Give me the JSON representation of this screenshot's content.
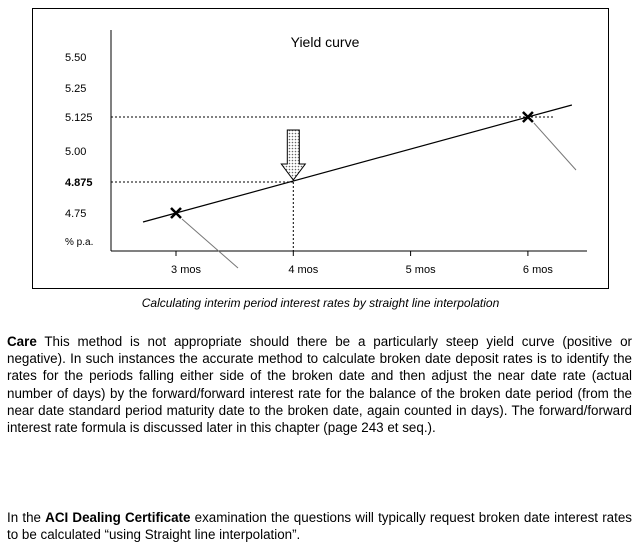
{
  "chart_data": {
    "type": "line",
    "title": "Yield curve",
    "x_categories": [
      "3 mos",
      "4 mos",
      "5 mos",
      "6 mos"
    ],
    "y_ticks": [
      {
        "value": 4.75,
        "label": "4.75",
        "bold": false
      },
      {
        "value": 4.875,
        "label": "4.875",
        "bold": true
      },
      {
        "value": 5.0,
        "label": "5.00",
        "bold": false
      },
      {
        "value": 5.125,
        "label": "5.125",
        "bold": false
      },
      {
        "value": 5.25,
        "label": "5.25",
        "bold": false
      },
      {
        "value": 5.5,
        "label": "5.50",
        "bold": false
      }
    ],
    "y_unit_label": "% p.a.",
    "series": [
      {
        "x": [
          3,
          6
        ],
        "y": [
          4.75,
          5.125
        ]
      }
    ],
    "marked_points": [
      {
        "x": 3,
        "y": 4.75
      },
      {
        "x": 6,
        "y": 5.125
      }
    ],
    "interpolated_point": {
      "x": 4,
      "y": 4.875
    },
    "grid": false
  },
  "caption": "Calculating interim period interest rates by straight line interpolation",
  "paragraph1": {
    "lead": "Care",
    "text": " This method is not appropriate should there be a particularly steep yield curve (positive or negative). In such instances the accurate method to calculate broken date deposit rates is to identify the rates for the periods falling either side of the broken date and then adjust the near date rate (actual number of days) by the forward/forward interest rate for the balance of the broken date period (from the near date standard period maturity date to the broken date, again counted in days). The forward/forward interest rate formula is discussed later in this chapter (page 243 et seq.)."
  },
  "paragraph2": {
    "before": "In the ",
    "bold": "ACI Dealing Certificate",
    "after": " examination the questions will typically request broken date interest rates to be calculated “using Straight line interpolation”."
  }
}
